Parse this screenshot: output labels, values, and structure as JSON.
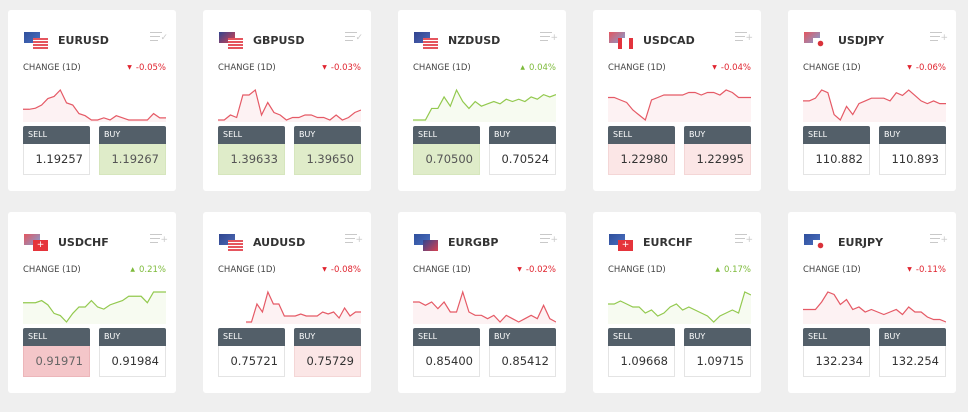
{
  "labels": {
    "change": "CHANGE (1D)",
    "sell": "SELL",
    "buy": "BUY"
  },
  "colors": {
    "up": "#7dba3a",
    "down": "#e0242f",
    "line_up": "#93c94f",
    "line_down": "#e55a66",
    "background": "#efefef",
    "header": "#535f69"
  },
  "cards": [
    {
      "pair": "EURUSD",
      "flags": [
        "eu",
        "us"
      ],
      "menu_icon": "list-check-icon",
      "change": "-0.05%",
      "direction": "down",
      "sell": "1.19257",
      "buy": "1.19267",
      "sell_state": "white",
      "buy_state": "green",
      "spark": [
        5,
        5,
        5.5,
        7,
        10,
        11,
        14,
        8,
        7,
        3,
        2,
        0,
        0,
        1,
        0,
        2,
        1,
        0,
        0,
        0,
        0,
        3,
        1,
        1
      ]
    },
    {
      "pair": "GBPUSD",
      "flags": [
        "gb",
        "us"
      ],
      "menu_icon": "list-check-icon",
      "change": "-0.03%",
      "direction": "down",
      "sell": "1.39633",
      "buy": "1.39650",
      "sell_state": "green",
      "buy_state": "green",
      "spark": [
        0,
        0,
        2,
        1,
        10,
        10,
        12,
        2,
        7,
        3,
        2,
        0,
        1,
        1,
        2,
        2,
        1,
        1,
        0,
        2,
        0,
        1,
        3,
        4
      ]
    },
    {
      "pair": "NZDUSD",
      "flags": [
        "nz",
        "us"
      ],
      "menu_icon": "list-add-icon",
      "change": "0.04%",
      "direction": "up",
      "sell": "0.70500",
      "buy": "0.70524",
      "sell_state": "green",
      "buy_state": "white",
      "spark": [
        0,
        0,
        0,
        5,
        5,
        10,
        6,
        13,
        8,
        5,
        8,
        6,
        7,
        8,
        7,
        9,
        8,
        9,
        8,
        10,
        9,
        11,
        10,
        11
      ]
    },
    {
      "pair": "USDCAD",
      "flags": [
        "us",
        "ca"
      ],
      "menu_icon": "list-add-icon",
      "change": "-0.04%",
      "direction": "down",
      "sell": "1.22980",
      "buy": "1.22995",
      "sell_state": "pink",
      "buy_state": "pink",
      "spark": [
        9,
        9,
        8,
        7,
        4,
        2,
        0,
        8,
        9,
        10,
        10,
        10,
        10,
        11,
        11,
        10,
        11,
        11,
        10,
        12,
        11,
        9,
        9,
        9
      ]
    },
    {
      "pair": "USDJPY",
      "flags": [
        "us",
        "jp"
      ],
      "menu_icon": "list-add-icon",
      "change": "-0.06%",
      "direction": "down",
      "sell": "110.882",
      "buy": "110.893",
      "sell_state": "white",
      "buy_state": "white",
      "spark": [
        7,
        7,
        8,
        11,
        10,
        2,
        0,
        5,
        2,
        6,
        7,
        8,
        8,
        8,
        7,
        10,
        9,
        11,
        9,
        7,
        6,
        7,
        6,
        6
      ]
    },
    {
      "pair": "USDCHF",
      "flags": [
        "us",
        "ch"
      ],
      "menu_icon": "list-add-icon",
      "change": "0.21%",
      "direction": "up",
      "sell": "0.91971",
      "buy": "0.91984",
      "sell_state": "strongpink",
      "buy_state": "white",
      "spark": [
        7,
        7,
        7,
        8,
        6,
        2,
        1,
        -2,
        2,
        5,
        5,
        8,
        5,
        4,
        6,
        7,
        8,
        10,
        10,
        10,
        7,
        12,
        12,
        12
      ]
    },
    {
      "pair": "AUDUSD",
      "flags": [
        "au",
        "us"
      ],
      "menu_icon": "list-add-icon",
      "change": "-0.08%",
      "direction": "down",
      "sell": "0.75721",
      "buy": "0.75729",
      "sell_state": "white",
      "buy_state": "pink",
      "spark": [
        0,
        0,
        9,
        5,
        15,
        9,
        9,
        3,
        3,
        3,
        4,
        3,
        3,
        3,
        5,
        4,
        5,
        2,
        7,
        3,
        5,
        5
      ]
    },
    {
      "pair": "EURGBP",
      "flags": [
        "eu",
        "gb"
      ],
      "menu_icon": "list-add-icon",
      "change": "-0.02%",
      "direction": "down",
      "sell": "0.85400",
      "buy": "0.85412",
      "sell_state": "white",
      "buy_state": "white",
      "spark": [
        6,
        6,
        5,
        6,
        4,
        6,
        3,
        3,
        9,
        3,
        2,
        2,
        1,
        2,
        0,
        2,
        1,
        0,
        1,
        2,
        1,
        5,
        1,
        0
      ]
    },
    {
      "pair": "EURCHF",
      "flags": [
        "eu",
        "ch"
      ],
      "menu_icon": "list-add-icon",
      "change": "0.17%",
      "direction": "up",
      "sell": "1.09668",
      "buy": "1.09715",
      "sell_state": "white",
      "buy_state": "white",
      "spark": [
        6,
        6,
        7,
        6,
        5,
        5,
        3,
        4,
        2,
        3,
        5,
        6,
        4,
        5,
        4,
        3,
        2,
        0,
        2,
        3,
        4,
        3,
        10,
        9
      ]
    },
    {
      "pair": "EURJPY",
      "flags": [
        "eu",
        "jp"
      ],
      "menu_icon": "list-add-icon",
      "change": "-0.11%",
      "direction": "down",
      "sell": "132.234",
      "buy": "132.254",
      "sell_state": "white",
      "buy_state": "white",
      "spark": [
        5,
        5,
        5,
        8,
        12,
        11,
        7,
        9,
        5,
        6,
        4,
        5,
        4,
        3,
        4,
        5,
        3,
        6,
        4,
        4,
        2,
        1,
        1,
        0
      ]
    }
  ]
}
